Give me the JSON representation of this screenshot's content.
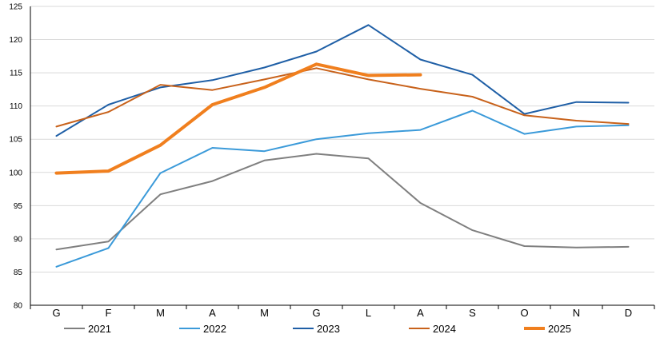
{
  "chart_data": {
    "type": "line",
    "title": "",
    "xlabel": "",
    "ylabel": "",
    "categories": [
      "G",
      "F",
      "M",
      "A",
      "M",
      "G",
      "L",
      "A",
      "S",
      "O",
      "N",
      "D"
    ],
    "ylim": [
      80,
      125
    ],
    "yticks": [
      80,
      85,
      90,
      95,
      100,
      105,
      110,
      115,
      120,
      125
    ],
    "grid": true,
    "legend_position": "bottom",
    "series": [
      {
        "name": "2021",
        "color": "#7f7f7f",
        "width": "normal",
        "values": [
          88.4,
          89.6,
          96.7,
          98.7,
          101.8,
          102.8,
          102.1,
          95.4,
          91.3,
          88.9,
          88.7,
          88.8
        ]
      },
      {
        "name": "2022",
        "color": "#3b9ad9",
        "width": "normal",
        "values": [
          85.8,
          88.6,
          99.9,
          103.7,
          103.2,
          105.0,
          105.9,
          106.4,
          109.3,
          105.8,
          106.9,
          107.1
        ]
      },
      {
        "name": "2023",
        "color": "#1f5fa6",
        "width": "normal",
        "values": [
          105.5,
          110.2,
          112.8,
          113.9,
          115.8,
          118.2,
          122.2,
          117.0,
          114.7,
          108.8,
          110.6,
          110.5
        ]
      },
      {
        "name": "2024",
        "color": "#c8621b",
        "width": "normal",
        "values": [
          106.9,
          109.1,
          113.2,
          112.4,
          114.0,
          115.7,
          114.0,
          112.6,
          111.4,
          108.6,
          107.8,
          107.3
        ]
      },
      {
        "name": "2025",
        "color": "#f07f1e",
        "width": "thick",
        "values": [
          99.9,
          100.2,
          104.1,
          110.2,
          112.8,
          116.3,
          114.6,
          114.7,
          null,
          null,
          null,
          null
        ]
      }
    ]
  }
}
